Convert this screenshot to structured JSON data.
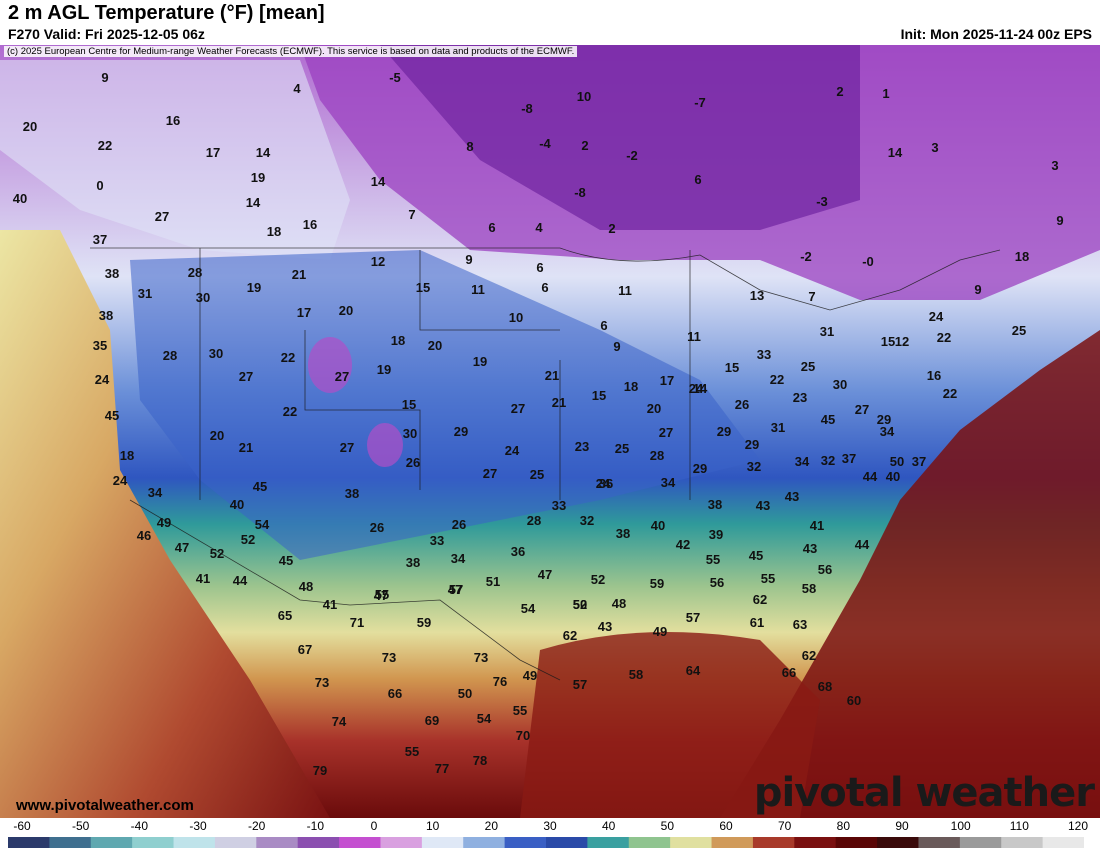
{
  "header": {
    "title": "2 m AGL Temperature (°F) [mean]",
    "valid": "F270 Valid: Fri 2025-12-05 06z",
    "init": "Init: Mon 2025-11-24 00z EPS"
  },
  "copyright": "(c) 2025 European Centre for Medium-range Weather Forecasts (ECMWF). This service is based on data and products of the ECMWF.",
  "footer": {
    "site": "www.pivotalweather.com",
    "brand": "pivotal weather"
  },
  "colorbar": {
    "ticks": [
      "-60",
      "-50",
      "-40",
      "-30",
      "-20",
      "-10",
      "0",
      "10",
      "20",
      "30",
      "40",
      "50",
      "60",
      "70",
      "80",
      "90",
      "100",
      "110",
      "120"
    ],
    "colors": [
      "#2b3a6b",
      "#3f6f8f",
      "#5fa8b0",
      "#8fcfcf",
      "#bfe3ea",
      "#cfcfe3",
      "#a98bc4",
      "#8b4fb0",
      "#c44fd0",
      "#d9a0e0",
      "#dfe8f6",
      "#8fb0e0",
      "#3a5fc4",
      "#2a4aa8",
      "#3aa0a0",
      "#8fc48f",
      "#e0e0a0",
      "#d09a5a",
      "#a83a2a",
      "#7a1010",
      "#5a0606",
      "#3a0a0a",
      "#6a5a5a",
      "#9a9a9a",
      "#c8c8c8",
      "#e8e8e8"
    ]
  },
  "map_labels": [
    "9",
    "4",
    "-5",
    "10",
    "-7",
    "20",
    "16",
    "-8",
    "2",
    "22",
    "17",
    "14",
    "8",
    "2",
    "1",
    "-2",
    "-8",
    "14",
    "3",
    "0",
    "19",
    "14",
    "6",
    "-4",
    "3",
    "40",
    "27",
    "14",
    "7",
    "6",
    "4",
    "2",
    "-3",
    "9",
    "37",
    "18",
    "16",
    "38",
    "28",
    "12",
    "9",
    "6",
    "-2",
    "-0",
    "18",
    "31",
    "30",
    "19",
    "21",
    "15",
    "11",
    "6",
    "11",
    "13",
    "7",
    "9",
    "38",
    "17",
    "20",
    "10",
    "6",
    "9",
    "35",
    "28",
    "30",
    "22",
    "18",
    "20",
    "19",
    "11",
    "31",
    "12",
    "15",
    "24",
    "25",
    "22",
    "24",
    "27",
    "33",
    "27",
    "19",
    "15",
    "21",
    "15",
    "18",
    "17",
    "14",
    "15",
    "22",
    "23",
    "30",
    "25",
    "27",
    "22",
    "45",
    "27",
    "21",
    "20",
    "24",
    "26",
    "16",
    "22",
    "18",
    "20",
    "27",
    "30",
    "29",
    "24",
    "23",
    "25",
    "27",
    "29",
    "31",
    "29",
    "45",
    "24",
    "21",
    "26",
    "27",
    "25",
    "24",
    "28",
    "29",
    "32",
    "32",
    "34",
    "34",
    "37",
    "34",
    "34",
    "45",
    "38",
    "26",
    "28",
    "33",
    "32",
    "36",
    "29",
    "40",
    "37",
    "38",
    "43",
    "40",
    "44",
    "50",
    "54",
    "49",
    "26",
    "33",
    "34",
    "36",
    "38",
    "38",
    "40",
    "39",
    "42",
    "43",
    "41",
    "46",
    "47",
    "52",
    "52",
    "45",
    "48",
    "41",
    "44",
    "41",
    "47",
    "47",
    "51",
    "47",
    "52",
    "48",
    "54",
    "50",
    "55",
    "45",
    "43",
    "44",
    "56",
    "55",
    "59",
    "56",
    "58",
    "62",
    "52",
    "57",
    "55",
    "59",
    "62",
    "43",
    "49",
    "57",
    "61",
    "63",
    "65",
    "67",
    "73",
    "71",
    "73",
    "73",
    "76",
    "49",
    "57",
    "58",
    "64",
    "62",
    "66",
    "68",
    "60",
    "66",
    "50",
    "54",
    "55",
    "70",
    "74",
    "69",
    "55",
    "77",
    "78",
    "79"
  ]
}
